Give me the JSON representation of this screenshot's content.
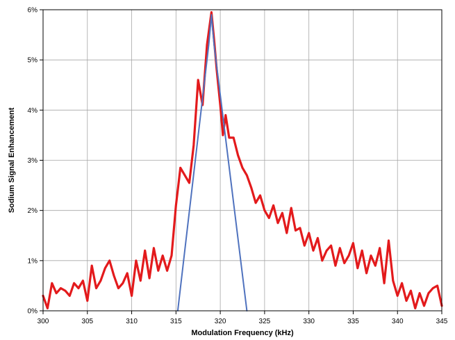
{
  "chart_data": {
    "type": "line",
    "title": "",
    "xlabel": "Modulation Frequency (kHz)",
    "ylabel": "Sodium Signal Enhancement",
    "xlim": [
      300,
      345
    ],
    "ylim": [
      0,
      6
    ],
    "x_ticks": [
      300,
      305,
      310,
      315,
      320,
      325,
      330,
      335,
      340,
      345
    ],
    "x_tick_labels": [
      "300",
      "305",
      "310",
      "315",
      "320",
      "325",
      "330",
      "335",
      "340",
      "345"
    ],
    "y_ticks": [
      0,
      1,
      2,
      3,
      4,
      5,
      6
    ],
    "y_tick_labels": [
      "0%",
      "1%",
      "2%",
      "3%",
      "4%",
      "5%",
      "6%"
    ],
    "grid": true,
    "legend": "none",
    "series": [
      {
        "color": "#e31a1c",
        "x": [
          300,
          300.5,
          301,
          301.5,
          302,
          302.5,
          303,
          303.5,
          304,
          304.5,
          305,
          305.5,
          306,
          306.5,
          307,
          307.5,
          308,
          308.5,
          309,
          309.5,
          310,
          310.5,
          311,
          311.5,
          312,
          312.5,
          313,
          313.5,
          314,
          314.5,
          315,
          315.5,
          316,
          316.5,
          317,
          317.5,
          318,
          318.5,
          319,
          319.3,
          319.6,
          320,
          320.3,
          320.6,
          321,
          321.5,
          322,
          322.5,
          323,
          323.5,
          324,
          324.5,
          325,
          325.5,
          326,
          326.5,
          327,
          327.5,
          328,
          328.5,
          329,
          329.5,
          330,
          330.5,
          331,
          331.5,
          332,
          332.5,
          333,
          333.5,
          334,
          334.5,
          335,
          335.5,
          336,
          336.5,
          337,
          337.5,
          338,
          338.5,
          339,
          339.5,
          340,
          340.5,
          341,
          341.5,
          342,
          342.5,
          343,
          343.5,
          344,
          344.5,
          345
        ],
        "y": [
          0.3,
          0.05,
          0.55,
          0.35,
          0.45,
          0.4,
          0.3,
          0.55,
          0.45,
          0.6,
          0.2,
          0.9,
          0.45,
          0.6,
          0.85,
          1.0,
          0.7,
          0.45,
          0.55,
          0.75,
          0.3,
          1.0,
          0.6,
          1.2,
          0.65,
          1.25,
          0.8,
          1.1,
          0.8,
          1.1,
          2.1,
          2.85,
          2.7,
          2.55,
          3.3,
          4.6,
          4.1,
          5.3,
          5.95,
          5.4,
          4.8,
          4.1,
          3.5,
          3.9,
          3.45,
          3.45,
          3.1,
          2.85,
          2.7,
          2.45,
          2.15,
          2.3,
          2.0,
          1.85,
          2.1,
          1.75,
          1.95,
          1.55,
          2.05,
          1.6,
          1.65,
          1.3,
          1.55,
          1.2,
          1.45,
          1.0,
          1.2,
          1.3,
          0.9,
          1.25,
          0.95,
          1.1,
          1.35,
          0.85,
          1.2,
          0.75,
          1.1,
          0.9,
          1.25,
          0.55,
          1.4,
          0.6,
          0.3,
          0.55,
          0.2,
          0.4,
          0.05,
          0.35,
          0.1,
          0.35,
          0.45,
          0.5,
          0.1
        ]
      },
      {
        "color": "#4f72be",
        "x": [
          315.2,
          318.7,
          319,
          319.3,
          323
        ],
        "y": [
          0,
          5.3,
          5.9,
          5.3,
          0
        ]
      }
    ]
  }
}
